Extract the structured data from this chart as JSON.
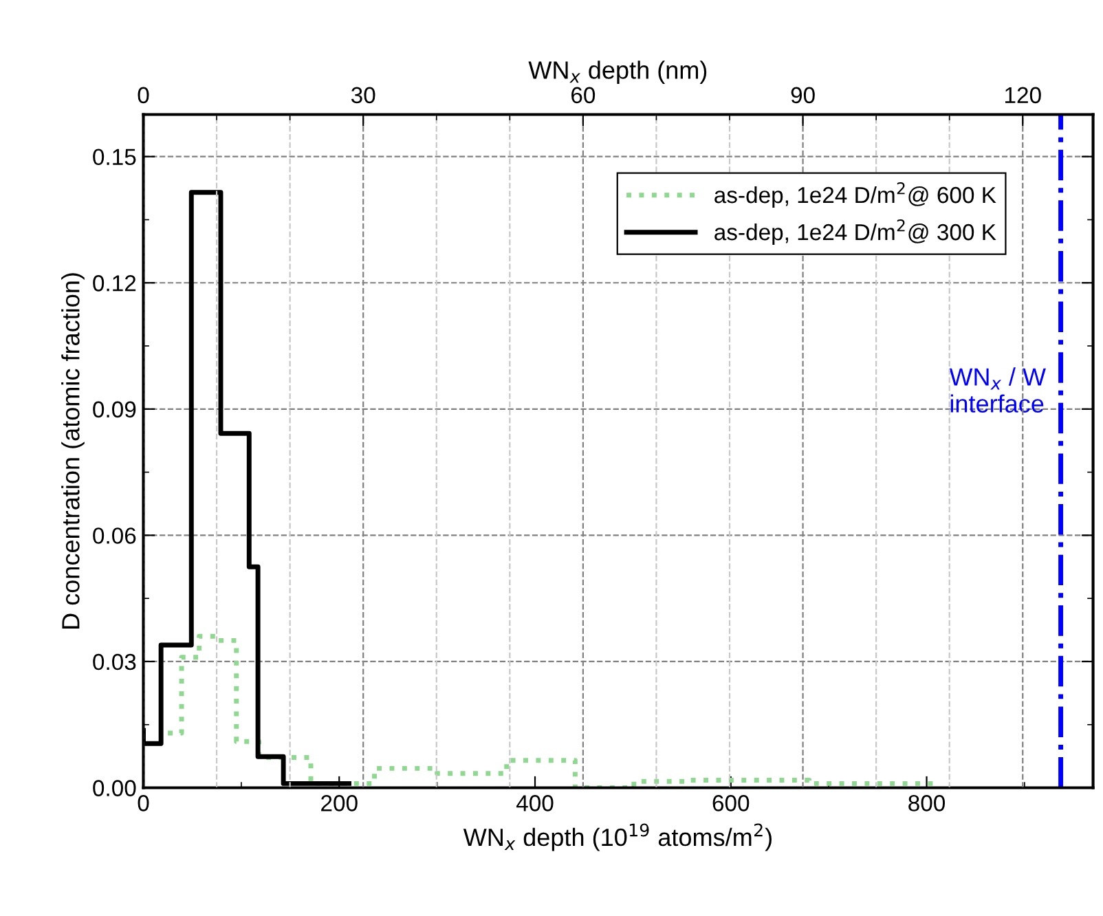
{
  "chart_data": {
    "type": "step",
    "xlabel": "WN$_{x}$ depth (10$^{19}$ atoms/m$^{2}$)",
    "ylabel": "D concentration (atomic fraction)",
    "x2label": "WN$_{x}$ depth (nm)",
    "xlim": [
      0,
      970
    ],
    "xticks": [
      0,
      200,
      400,
      600,
      800
    ],
    "x2lim": [
      0,
      129.6
    ],
    "x2ticks": [
      0,
      30,
      60,
      90,
      120
    ],
    "ylim": [
      0,
      0.16
    ],
    "yticks": [
      {
        "value": 0,
        "label": "0.00"
      },
      0.03,
      0.06,
      0.09,
      0.12,
      0.15
    ],
    "grid": true,
    "legend": "top right",
    "series": [
      {
        "name": "as-dep, 1e24 D/m$^{2}$@ 600 K",
        "color": "#8fd88f",
        "line_style": "dotted",
        "x": [
          25,
          39,
          57,
          76,
          95,
          118,
          171,
          236,
          300,
          371,
          441,
          501,
          554,
          680,
          810
        ],
        "values": [
          0.013,
          0.031,
          0.036,
          0.035,
          0.011,
          0.0072,
          0.001,
          0.0046,
          0.0034,
          0.0065,
          0.0,
          0.0015,
          0.0018,
          0.001,
          0.001
        ]
      },
      {
        "name": "as-dep, 1e24 D/m$^{2}$@ 300 K",
        "color": "#000000",
        "line_style": "solid",
        "x": [
          0,
          0,
          18,
          49,
          79,
          108,
          117,
          143,
          210
        ],
        "values": [
          0.0136,
          0.0105,
          0.0339,
          0.1415,
          0.0842,
          0.0525,
          0.0074,
          0.001,
          0.001
        ]
      }
    ],
    "ref_lines": [
      {
        "axis": "x",
        "value": 937,
        "label": "WN$_{x}$ / W\ninterface",
        "color": "#0000ff",
        "line_style": "dashdot"
      }
    ]
  }
}
